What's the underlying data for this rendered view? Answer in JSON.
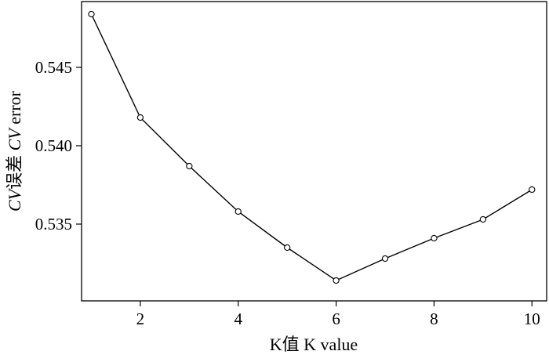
{
  "chart_data": {
    "type": "line",
    "xlabel": "K值  K value",
    "ylabel_italic_1": "CV",
    "ylabel_cn": "误差  ",
    "ylabel_italic_2": "CV",
    "ylabel_en": " error",
    "x": [
      1,
      2,
      3,
      4,
      5,
      6,
      7,
      8,
      9,
      10
    ],
    "y": [
      0.5484,
      0.5418,
      0.5387,
      0.5358,
      0.5335,
      0.5314,
      0.5328,
      0.5341,
      0.5353,
      0.5372
    ],
    "xlim": [
      0.8,
      10.3
    ],
    "ylim": [
      0.5301,
      0.5492
    ],
    "xticks": [
      2,
      4,
      6,
      8,
      10
    ],
    "xtick_labels": [
      "2",
      "4",
      "6",
      "8",
      "10"
    ],
    "yticks": [
      0.535,
      0.54,
      0.545
    ],
    "ytick_labels": [
      "0.535",
      "0.540",
      "0.545"
    ],
    "grid": false,
    "marker": "open-circle",
    "line_color": "#000000"
  }
}
